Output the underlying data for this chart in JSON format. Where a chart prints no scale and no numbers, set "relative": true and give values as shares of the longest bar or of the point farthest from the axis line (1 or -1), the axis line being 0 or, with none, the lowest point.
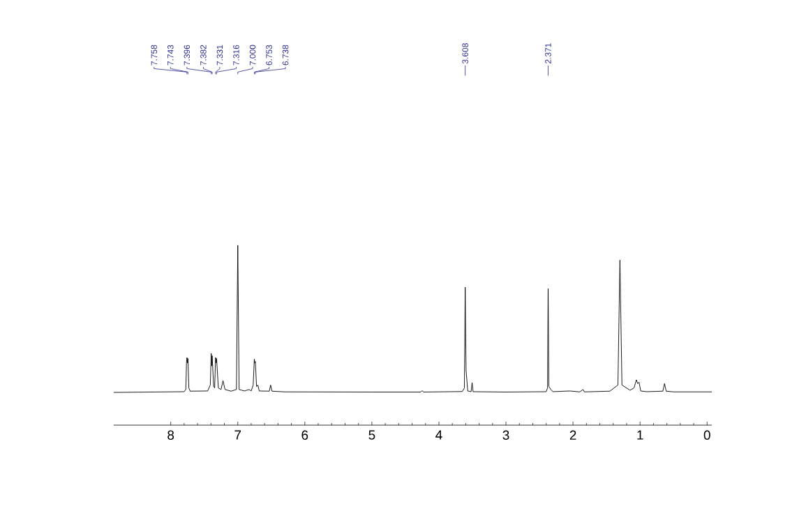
{
  "chart_data": {
    "type": "line",
    "relative": true,
    "color": "#000000",
    "x": [
      8.85,
      7.8,
      7.775,
      7.765,
      7.758,
      7.75,
      7.743,
      7.73,
      7.71,
      7.45,
      7.41,
      7.396,
      7.389,
      7.382,
      7.36,
      7.345,
      7.331,
      7.323,
      7.316,
      7.29,
      7.25,
      7.22,
      7.19,
      7.1,
      7.02,
      7.0,
      6.98,
      6.9,
      6.83,
      6.8,
      6.77,
      6.753,
      6.746,
      6.738,
      6.72,
      6.7,
      6.68,
      6.53,
      6.51,
      6.49,
      6.3,
      5.0,
      4.27,
      4.25,
      4.23,
      3.65,
      3.62,
      3.608,
      3.595,
      3.57,
      3.52,
      3.505,
      3.49,
      3.0,
      2.4,
      2.38,
      2.371,
      2.36,
      2.33,
      2.3,
      2.05,
      1.9,
      1.85,
      1.83,
      1.45,
      1.33,
      1.3,
      1.27,
      1.15,
      1.09,
      1.055,
      1.035,
      1.015,
      0.99,
      0.9,
      0.66,
      0.635,
      0.61,
      0.5,
      -0.07
    ],
    "values": [
      0.182,
      0.186,
      0.198,
      0.346,
      0.376,
      0.346,
      0.37,
      0.207,
      0.189,
      0.19,
      0.223,
      0.399,
      0.329,
      0.386,
      0.215,
      0.207,
      0.376,
      0.346,
      0.37,
      0.207,
      0.198,
      0.247,
      0.198,
      0.189,
      0.198,
      1.0,
      0.198,
      0.19,
      0.198,
      0.19,
      0.223,
      0.368,
      0.346,
      0.354,
      0.215,
      0.223,
      0.19,
      0.189,
      0.223,
      0.189,
      0.185,
      0.184,
      0.184,
      0.192,
      0.184,
      0.187,
      0.207,
      0.767,
      0.305,
      0.19,
      0.186,
      0.236,
      0.186,
      0.184,
      0.186,
      0.207,
      0.759,
      0.215,
      0.198,
      0.186,
      0.19,
      0.185,
      0.198,
      0.185,
      0.189,
      0.223,
      0.918,
      0.223,
      0.194,
      0.207,
      0.252,
      0.231,
      0.239,
      0.19,
      0.186,
      0.189,
      0.231,
      0.189,
      0.185,
      0.185
    ],
    "xlim": [
      8.85,
      -0.07
    ],
    "xticks": [
      8,
      7,
      6,
      5,
      4,
      3,
      2,
      1,
      0
    ],
    "annotations": [
      {
        "text": "7.758",
        "x": 7.758
      },
      {
        "text": "7.743",
        "x": 7.743
      },
      {
        "text": "7.396",
        "x": 7.396
      },
      {
        "text": "7.382",
        "x": 7.382
      },
      {
        "text": "7.331",
        "x": 7.331
      },
      {
        "text": "7.316",
        "x": 7.316
      },
      {
        "text": "7.000",
        "x": 7.0
      },
      {
        "text": "6.753",
        "x": 6.753
      },
      {
        "text": "6.738",
        "x": 6.738
      },
      {
        "text": "3.608",
        "x": 3.608
      },
      {
        "text": "2.371",
        "x": 2.371
      }
    ]
  }
}
